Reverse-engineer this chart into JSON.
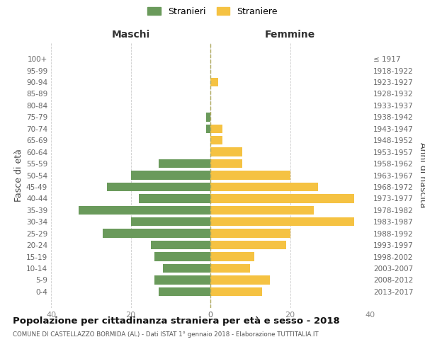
{
  "age_groups": [
    "100+",
    "95-99",
    "90-94",
    "85-89",
    "80-84",
    "75-79",
    "70-74",
    "65-69",
    "60-64",
    "55-59",
    "50-54",
    "45-49",
    "40-44",
    "35-39",
    "30-34",
    "25-29",
    "20-24",
    "15-19",
    "10-14",
    "5-9",
    "0-4"
  ],
  "birth_years": [
    "≤ 1917",
    "1918-1922",
    "1923-1927",
    "1928-1932",
    "1933-1937",
    "1938-1942",
    "1943-1947",
    "1948-1952",
    "1953-1957",
    "1958-1962",
    "1963-1967",
    "1968-1972",
    "1973-1977",
    "1978-1982",
    "1983-1987",
    "1988-1992",
    "1993-1997",
    "1998-2002",
    "2003-2007",
    "2008-2012",
    "2013-2017"
  ],
  "maschi": [
    0,
    0,
    0,
    0,
    0,
    1,
    1,
    0,
    0,
    13,
    20,
    26,
    18,
    33,
    20,
    27,
    15,
    14,
    12,
    14,
    13
  ],
  "femmine": [
    0,
    0,
    2,
    0,
    0,
    0,
    3,
    3,
    8,
    8,
    20,
    27,
    36,
    26,
    36,
    20,
    19,
    11,
    10,
    15,
    13
  ],
  "color_maschi": "#6a9a5b",
  "color_femmine": "#f5c242",
  "background_color": "#ffffff",
  "grid_color": "#cccccc",
  "dashed_color": "#b0aa60",
  "title": "Popolazione per cittadinanza straniera per età e sesso - 2018",
  "subtitle": "COMUNE DI CASTELLAZZO BORMIDA (AL) - Dati ISTAT 1° gennaio 2018 - Elaborazione TUTTITALIA.IT",
  "left_header": "Maschi",
  "right_header": "Femmine",
  "ylabel_left": "Fasce di età",
  "ylabel_right": "Anni di nascita",
  "xlim": 40,
  "legend_maschi": "Stranieri",
  "legend_femmine": "Straniere"
}
